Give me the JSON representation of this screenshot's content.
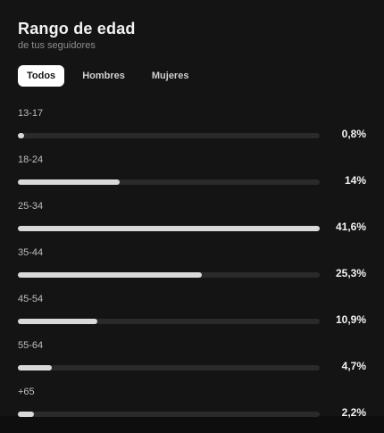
{
  "header": {
    "title": "Rango de edad",
    "subtitle": "de tus seguidores"
  },
  "tabs": [
    {
      "label": "Todos",
      "active": true
    },
    {
      "label": "Hombres",
      "active": false
    },
    {
      "label": "Mujeres",
      "active": false
    }
  ],
  "rows": [
    {
      "label": "13-17",
      "value_text": "0,8%",
      "value": 0.8
    },
    {
      "label": "18-24",
      "value_text": "14%",
      "value": 14.0
    },
    {
      "label": "25-34",
      "value_text": "41,6%",
      "value": 41.6
    },
    {
      "label": "35-44",
      "value_text": "25,3%",
      "value": 25.3
    },
    {
      "label": "45-54",
      "value_text": "10,9%",
      "value": 10.9
    },
    {
      "label": "55-64",
      "value_text": "4,7%",
      "value": 4.7
    },
    {
      "label": "+65",
      "value_text": "2,2%",
      "value": 2.2
    }
  ],
  "colors": {
    "background": "#141414",
    "bar_fill": "#d9d9d9",
    "bar_track": "#2a2a2a",
    "active_tab": "#ffffff"
  }
}
